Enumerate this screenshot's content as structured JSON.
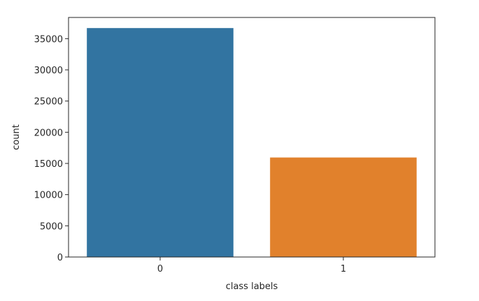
{
  "chart_data": {
    "type": "bar",
    "categories": [
      "0",
      "1"
    ],
    "values": [
      36700,
      15950
    ],
    "colors": [
      "#3274a1",
      "#e1812c"
    ],
    "title": "",
    "xlabel": "class labels",
    "ylabel": "count",
    "ylim": [
      0,
      38400
    ],
    "yticks": [
      0,
      5000,
      10000,
      15000,
      20000,
      25000,
      30000,
      35000
    ],
    "ytick_labels": [
      "0",
      "5000",
      "10000",
      "15000",
      "20000",
      "25000",
      "30000",
      "35000"
    ],
    "grid": false,
    "legend": "none"
  }
}
